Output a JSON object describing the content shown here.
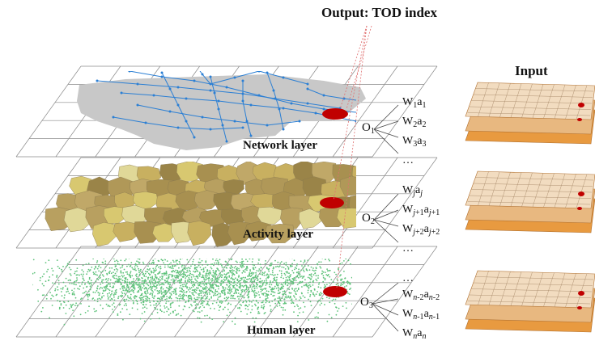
{
  "output_title": "Output:  TOD index",
  "input_title": "Input",
  "layers": [
    {
      "label": "Network layer",
      "node": "O",
      "node_sub": "1",
      "terms": [
        [
          {
            "t": "W"
          },
          {
            "s": "1"
          },
          {
            "t": "a"
          },
          {
            "s": "1"
          }
        ],
        [
          {
            "t": "W"
          },
          {
            "s": "2"
          },
          {
            "t": "a"
          },
          {
            "s": "2"
          }
        ],
        [
          {
            "t": "W"
          },
          {
            "s": "3"
          },
          {
            "t": "a"
          },
          {
            "s": "3"
          }
        ],
        [
          {
            "t": "…"
          }
        ]
      ]
    },
    {
      "label": "Activity layer",
      "node": "O",
      "node_sub": "2",
      "terms": [
        [
          {
            "t": "W"
          },
          {
            "s": "j",
            "i": true
          },
          {
            "t": "a"
          },
          {
            "s": "j",
            "i": true
          }
        ],
        [
          {
            "t": "W"
          },
          {
            "s": "j",
            "i": true
          },
          {
            "s": "+1"
          },
          {
            "t": "a"
          },
          {
            "s": "j",
            "i": true
          },
          {
            "s": "+1"
          }
        ],
        [
          {
            "t": "W"
          },
          {
            "s": "j",
            "i": true
          },
          {
            "s": "+2"
          },
          {
            "t": "a"
          },
          {
            "s": "j",
            "i": true
          },
          {
            "s": "+2"
          }
        ],
        [
          {
            "t": "…"
          }
        ]
      ]
    },
    {
      "label": "Human layer",
      "node": "O",
      "node_sub": "3",
      "terms": [
        [
          {
            "t": "…"
          }
        ],
        [
          {
            "t": "W"
          },
          {
            "s": "n",
            "i": true
          },
          {
            "s": "-2"
          },
          {
            "t": "a"
          },
          {
            "s": "n",
            "i": true
          },
          {
            "s": "-2"
          }
        ],
        [
          {
            "t": "W"
          },
          {
            "s": "n",
            "i": true
          },
          {
            "s": "-1"
          },
          {
            "t": "a"
          },
          {
            "s": "n",
            "i": true
          },
          {
            "s": "-1"
          }
        ],
        [
          {
            "t": "W"
          },
          {
            "s": "n",
            "i": true
          },
          {
            "t": "a"
          },
          {
            "s": "n",
            "i": true
          }
        ]
      ]
    }
  ],
  "colors": {
    "network_fill": "#c8c8c8",
    "network_lines": "#2b7fd4",
    "activity_fills": [
      "#b8a060",
      "#a89050",
      "#d8c870",
      "#c8b060",
      "#e0d898",
      "#9a8448",
      "#c0a868",
      "#b09858"
    ],
    "human_points": "#5ec27a",
    "grid": "#8a8a8a",
    "marker": "#c00000",
    "input_top": "#f2dcc0",
    "input_mid": "#e8b880",
    "input_bottom": "#e89a40"
  }
}
